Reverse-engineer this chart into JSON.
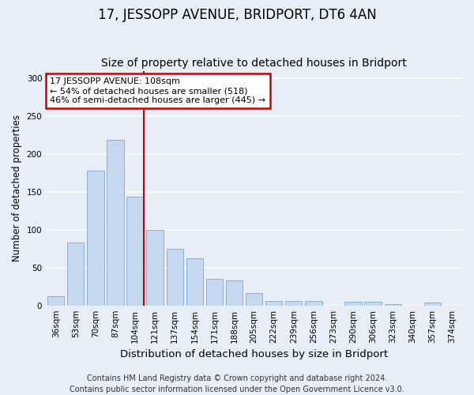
{
  "title": "17, JESSOPP AVENUE, BRIDPORT, DT6 4AN",
  "subtitle": "Size of property relative to detached houses in Bridport",
  "xlabel": "Distribution of detached houses by size in Bridport",
  "ylabel": "Number of detached properties",
  "footer_line1": "Contains HM Land Registry data © Crown copyright and database right 2024.",
  "footer_line2": "Contains public sector information licensed under the Open Government Licence v3.0.",
  "categories": [
    "36sqm",
    "53sqm",
    "70sqm",
    "87sqm",
    "104sqm",
    "121sqm",
    "137sqm",
    "154sqm",
    "171sqm",
    "188sqm",
    "205sqm",
    "222sqm",
    "239sqm",
    "256sqm",
    "273sqm",
    "290sqm",
    "306sqm",
    "323sqm",
    "340sqm",
    "357sqm",
    "374sqm"
  ],
  "values": [
    12,
    83,
    178,
    219,
    144,
    100,
    75,
    62,
    35,
    33,
    16,
    6,
    6,
    6,
    0,
    5,
    5,
    2,
    0,
    4,
    0
  ],
  "bar_color": "#c5d8f0",
  "bar_edge_color": "#8ab0d4",
  "vline_index": 4,
  "annotation_line1": "17 JESSOPP AVENUE: 108sqm",
  "annotation_line2": "← 54% of detached houses are smaller (518)",
  "annotation_line3": "46% of semi-detached houses are larger (445) →",
  "annotation_box_color": "white",
  "annotation_box_edge_color": "#cc0000",
  "vline_color": "#cc0000",
  "ylim": [
    0,
    310
  ],
  "yticks": [
    0,
    50,
    100,
    150,
    200,
    250,
    300
  ],
  "bg_color": "#e8eef8",
  "plot_bg_color": "#e8eef8",
  "grid_color": "white",
  "title_fontsize": 12,
  "subtitle_fontsize": 10,
  "xlabel_fontsize": 9.5,
  "ylabel_fontsize": 8.5,
  "tick_fontsize": 7.5,
  "annot_fontsize": 8,
  "footer_fontsize": 7
}
